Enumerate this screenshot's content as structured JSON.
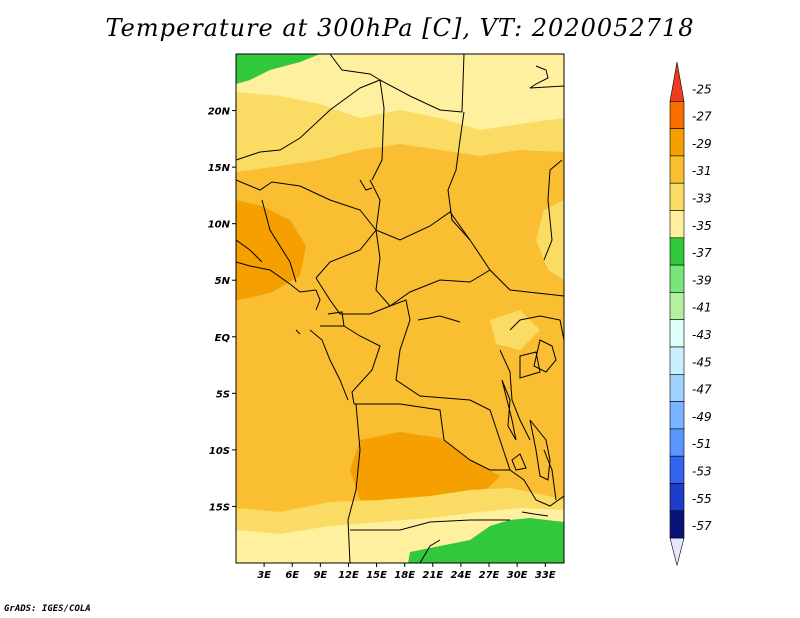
{
  "title": "Temperature at 300hPa [C], VT: 2020052718",
  "credit": "GrADS: IGES/COLA",
  "map": {
    "lon_range": [
      0,
      35
    ],
    "lat_range": [
      -20,
      25
    ],
    "lat_ticks": [
      {
        "value": 20,
        "label": "20N"
      },
      {
        "value": 15,
        "label": "15N"
      },
      {
        "value": 10,
        "label": "10N"
      },
      {
        "value": 5,
        "label": "5N"
      },
      {
        "value": 0,
        "label": "EQ"
      },
      {
        "value": -5,
        "label": "5S"
      },
      {
        "value": -10,
        "label": "10S"
      },
      {
        "value": -15,
        "label": "15S"
      }
    ],
    "lon_ticks": [
      {
        "value": 3,
        "label": "3E"
      },
      {
        "value": 6,
        "label": "6E"
      },
      {
        "value": 9,
        "label": "9E"
      },
      {
        "value": 12,
        "label": "12E"
      },
      {
        "value": 15,
        "label": "15E"
      },
      {
        "value": 18,
        "label": "18E"
      },
      {
        "value": 21,
        "label": "21E"
      },
      {
        "value": 24,
        "label": "24E"
      },
      {
        "value": 27,
        "label": "27E"
      },
      {
        "value": 30,
        "label": "30E"
      },
      {
        "value": 33,
        "label": "33E"
      }
    ]
  },
  "colorbar": {
    "labels": [
      "-25",
      "-27",
      "-29",
      "-31",
      "-33",
      "-35",
      "-37",
      "-39",
      "-41",
      "-43",
      "-45",
      "-47",
      "-49",
      "-51",
      "-53",
      "-55",
      "-57"
    ],
    "colors": [
      "#f03c1e",
      "#fa6e00",
      "#f5a000",
      "#fabe32",
      "#fadc64",
      "#fff0a0",
      "#32c83c",
      "#78e678",
      "#b4f0a0",
      "#e1fffa",
      "#c8f0ff",
      "#a0d2ff",
      "#78b4ff",
      "#5a96ff",
      "#3264f0",
      "#1e3cc8",
      "#0a1478",
      "#e6e6ff"
    ]
  }
}
